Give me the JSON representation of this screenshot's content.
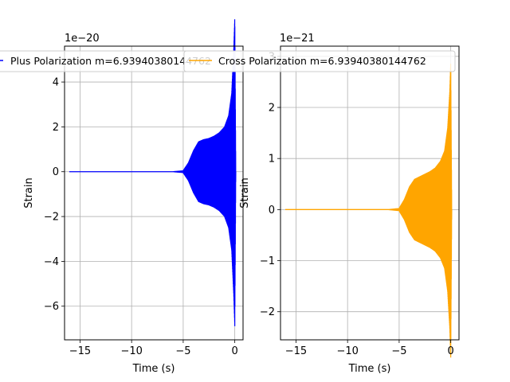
{
  "chart_data": [
    {
      "type": "line",
      "xlabel": "Time (s)",
      "ylabel": "Strain",
      "offset_text": "1e−20",
      "scale": 1e-20,
      "xlim": [
        -16.5,
        0.8
      ],
      "ylim": [
        -7.5,
        5.6
      ],
      "xticks": [
        -15,
        -10,
        -5,
        0
      ],
      "xtick_labels": [
        "−15",
        "−10",
        "−5",
        "0"
      ],
      "yticks": [
        -6,
        -4,
        -2,
        0,
        2,
        4
      ],
      "ytick_labels": [
        "−6",
        "−4",
        "−2",
        "0",
        "2",
        "4"
      ],
      "grid": true,
      "legend": "Plus Polarization m=6.93940380144762",
      "legend_position": "top",
      "series": [
        {
          "name": "Plus Polarization m=6.93940380144762",
          "color": "#0000ff",
          "x_range": [
            -16,
            0.1
          ],
          "envelope": [
            {
              "x": -16,
              "y": 0.02
            },
            {
              "x": -6,
              "y": 0.02
            },
            {
              "x": -5,
              "y": 0.06
            },
            {
              "x": -4.5,
              "y": 0.4
            },
            {
              "x": -4,
              "y": 0.95
            },
            {
              "x": -3.5,
              "y": 1.35
            },
            {
              "x": -3,
              "y": 1.45
            },
            {
              "x": -2.5,
              "y": 1.5
            },
            {
              "x": -2,
              "y": 1.6
            },
            {
              "x": -1.5,
              "y": 1.75
            },
            {
              "x": -1,
              "y": 2.0
            },
            {
              "x": -0.6,
              "y": 2.5
            },
            {
              "x": -0.3,
              "y": 3.5
            },
            {
              "x": -0.1,
              "y": 5.5
            },
            {
              "x": 0,
              "y": 6.9
            },
            {
              "x": 0.1,
              "y": 0
            }
          ]
        }
      ]
    },
    {
      "type": "line",
      "xlabel": "Time (s)",
      "ylabel": "Strain",
      "offset_text": "1e−21",
      "scale": 1e-21,
      "xlim": [
        -16.5,
        0.8
      ],
      "ylim": [
        -2.55,
        3.2
      ],
      "xticks": [
        -15,
        -10,
        -5,
        0
      ],
      "xtick_labels": [
        "−15",
        "−10",
        "−5",
        "0"
      ],
      "yticks": [
        -2,
        -1,
        0,
        1,
        2,
        3
      ],
      "ytick_labels": [
        "−2",
        "−1",
        "0",
        "1",
        "2",
        "3"
      ],
      "grid": true,
      "legend": "Cross Polarization m=6.93940380144762",
      "legend_position": "top",
      "series": [
        {
          "name": "Cross Polarization m=6.93940380144762",
          "color": "#ffa500",
          "x_range": [
            -16,
            0.1
          ],
          "envelope": [
            {
              "x": -16,
              "y": 0.01
            },
            {
              "x": -6,
              "y": 0.01
            },
            {
              "x": -5,
              "y": 0.03
            },
            {
              "x": -4.5,
              "y": 0.2
            },
            {
              "x": -4,
              "y": 0.45
            },
            {
              "x": -3.5,
              "y": 0.6
            },
            {
              "x": -3,
              "y": 0.65
            },
            {
              "x": -2.5,
              "y": 0.7
            },
            {
              "x": -2,
              "y": 0.75
            },
            {
              "x": -1.5,
              "y": 0.82
            },
            {
              "x": -1,
              "y": 0.95
            },
            {
              "x": -0.6,
              "y": 1.15
            },
            {
              "x": -0.3,
              "y": 1.6
            },
            {
              "x": -0.1,
              "y": 2.3
            },
            {
              "x": 0,
              "y": 2.9
            },
            {
              "x": 0.1,
              "y": 0
            }
          ]
        }
      ]
    }
  ]
}
